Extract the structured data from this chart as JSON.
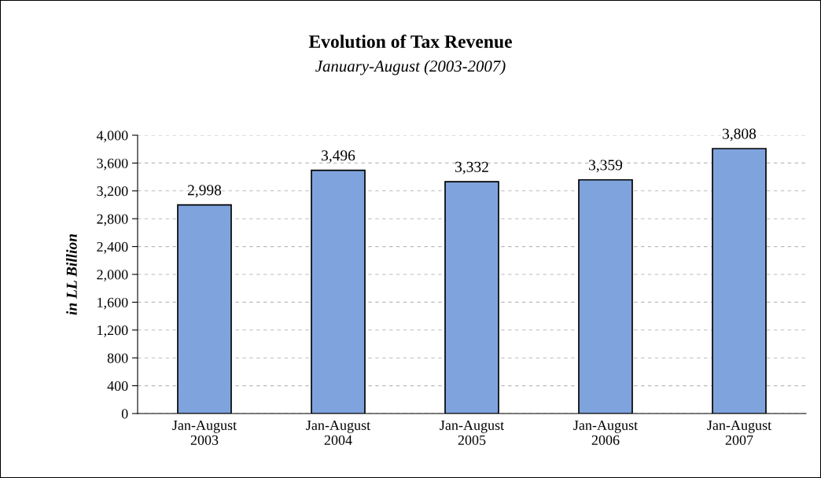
{
  "chart_data": {
    "type": "bar",
    "title": "Evolution of Tax Revenue",
    "subtitle": "January-August (2003-2007)",
    "ylabel": "in LL Billion",
    "categories": [
      "Jan-August\n2003",
      "Jan-August\n2004",
      "Jan-August\n2005",
      "Jan-August\n2006",
      "Jan-August\n2007"
    ],
    "values": [
      2998,
      3496,
      3332,
      3359,
      3808
    ],
    "value_labels": [
      "2,998",
      "3,496",
      "3,332",
      "3,359",
      "3,808"
    ],
    "color": "#7fa3dc",
    "ylim": [
      0,
      4000
    ],
    "yticks": [
      0,
      {
        "value": 400,
        "label": "400"
      },
      {
        "value": 800,
        "label": "800"
      },
      {
        "value": 1200,
        "label": "1,200"
      },
      {
        "value": 1600,
        "label": "1,600"
      },
      {
        "value": 2000,
        "label": "2,000"
      },
      {
        "value": 2400,
        "label": "2,400"
      },
      {
        "value": 2800,
        "label": "2,800"
      },
      {
        "value": 3200,
        "label": "3,200"
      },
      {
        "value": 3600,
        "label": "3,600"
      },
      {
        "value": 4000,
        "label": "4,000"
      }
    ],
    "grid": "y",
    "legend": false
  }
}
